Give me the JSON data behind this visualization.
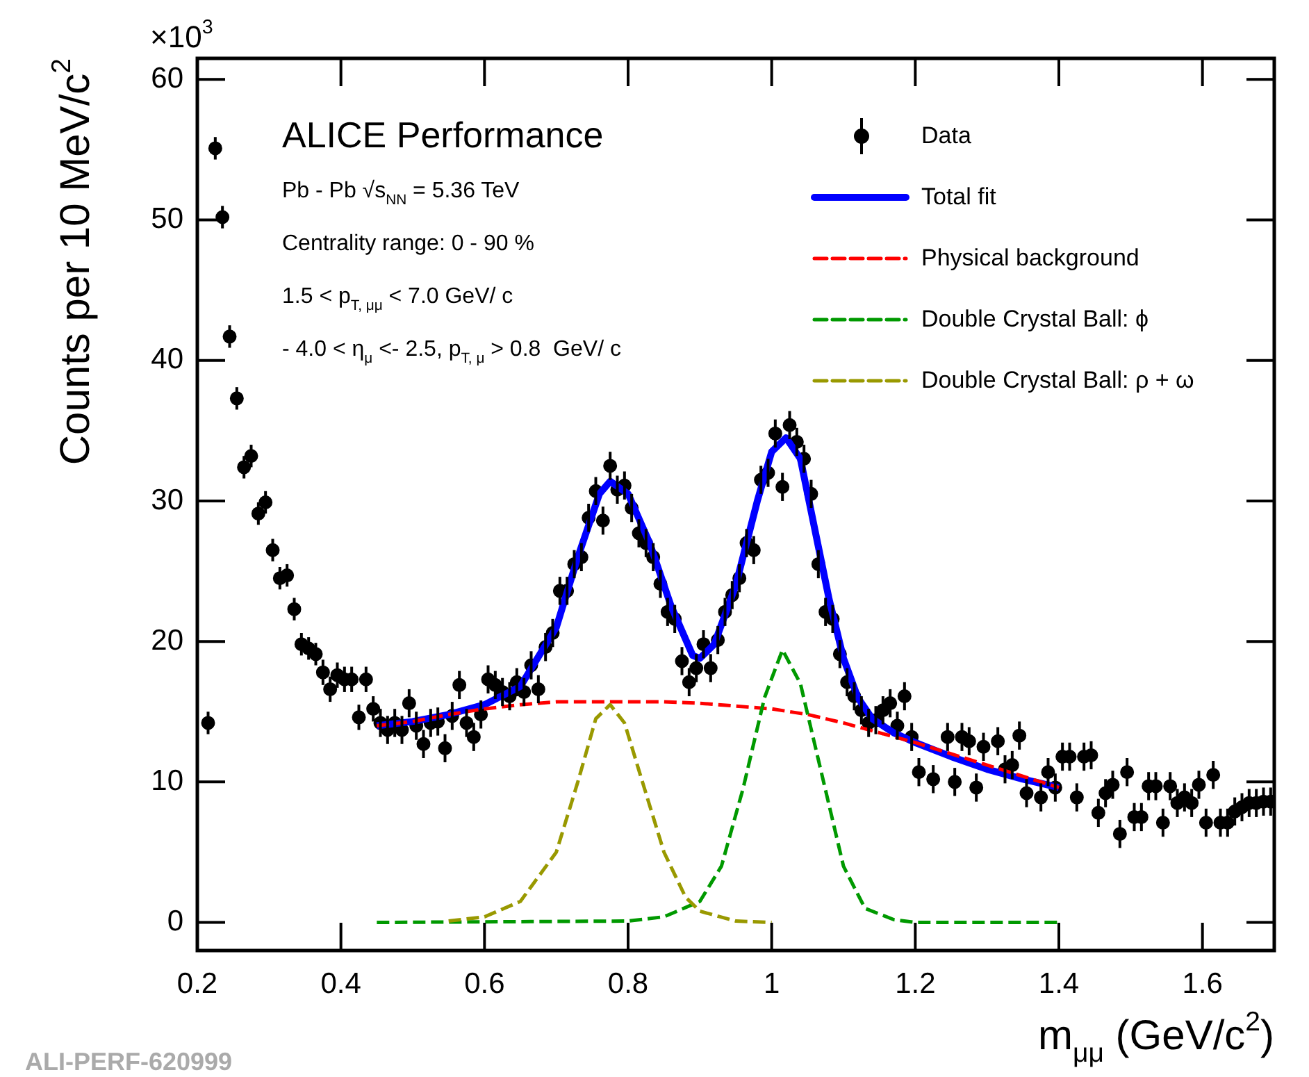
{
  "chart_data": {
    "type": "scatter",
    "title": "ALICE Performance",
    "xlabel": "m$_{μμ}$ (GeV/c$^{2}$)",
    "ylabel": "Counts per 10 MeV/c$^{2}$",
    "annotations": [
      "Pb - Pb √s$_{NN}$ = 5.36 TeV",
      "Centrality range: 0 - 90 %",
      "1.5 < p$_{T, μμ}$ < 7.0 GeV/ c",
      "- 4.0 < η$_{μ}$ <- 2.5, p$_{T, μ}$ > 0.8  GeV/ c",
      "×10$^{3}$",
      "ALI-PERF-620999"
    ],
    "xlim": [
      0.2,
      1.7
    ],
    "xticks": [
      0.2,
      0.4,
      0.6,
      0.8,
      1,
      1.2,
      1.4,
      1.6
    ],
    "ylim": [
      -2,
      61.5
    ],
    "yticks": [
      0,
      10,
      20,
      30,
      40,
      50,
      60
    ],
    "grid": false,
    "legend": "top right",
    "series": [
      {
        "name": "Data",
        "type": "scatter",
        "marker": "circle",
        "color": "#000000",
        "x": [
          0.215,
          0.225,
          0.235,
          0.245,
          0.255,
          0.265,
          0.275,
          0.285,
          0.295,
          0.305,
          0.315,
          0.325,
          0.335,
          0.345,
          0.355,
          0.365,
          0.375,
          0.385,
          0.395,
          0.405,
          0.415,
          0.425,
          0.435,
          0.445,
          0.455,
          0.465,
          0.475,
          0.485,
          0.495,
          0.505,
          0.515,
          0.525,
          0.535,
          0.545,
          0.555,
          0.565,
          0.575,
          0.585,
          0.595,
          0.605,
          0.615,
          0.625,
          0.635,
          0.645,
          0.655,
          0.665,
          0.675,
          0.685,
          0.695,
          0.705,
          0.715,
          0.725,
          0.735,
          0.745,
          0.755,
          0.765,
          0.775,
          0.785,
          0.795,
          0.805,
          0.815,
          0.825,
          0.835,
          0.845,
          0.855,
          0.865,
          0.875,
          0.885,
          0.895,
          0.905,
          0.915,
          0.925,
          0.935,
          0.945,
          0.955,
          0.965,
          0.975,
          0.985,
          0.995,
          1.005,
          1.015,
          1.025,
          1.035,
          1.045,
          1.055,
          1.065,
          1.075,
          1.085,
          1.095,
          1.105,
          1.115,
          1.125,
          1.135,
          1.145,
          1.155,
          1.165,
          1.175,
          1.185,
          1.195,
          1.205,
          1.225,
          1.245,
          1.255,
          1.265,
          1.275,
          1.285,
          1.295,
          1.315,
          1.325,
          1.335,
          1.345,
          1.355,
          1.375,
          1.385,
          1.395,
          1.405,
          1.415,
          1.425,
          1.435,
          1.445,
          1.455,
          1.465,
          1.475,
          1.485,
          1.495,
          1.505,
          1.515,
          1.525,
          1.535,
          1.545,
          1.555,
          1.565,
          1.575,
          1.585,
          1.595,
          1.605,
          1.615,
          1.625,
          1.635,
          1.645,
          1.655,
          1.665,
          1.675,
          1.685,
          1.695
        ],
        "values": [
          14.2,
          55.1,
          50.2,
          41.7,
          37.3,
          32.4,
          33.2,
          29.1,
          29.9,
          26.5,
          24.5,
          24.7,
          22.3,
          19.8,
          19.5,
          19.1,
          17.8,
          16.6,
          17.6,
          17.3,
          17.3,
          14.6,
          17.3,
          15.2,
          14.2,
          13.7,
          14.2,
          13.7,
          15.6,
          14.0,
          12.7,
          14.2,
          14.3,
          12.4,
          14.7,
          16.9,
          14.2,
          13.2,
          14.8,
          17.3,
          16.9,
          16.4,
          16.1,
          17.1,
          16.4,
          18.3,
          16.6,
          19.6,
          20.6,
          23.6,
          23.6,
          25.5,
          26.0,
          28.8,
          30.7,
          28.6,
          32.5,
          30.8,
          31.1,
          29.5,
          27.7,
          27.0,
          26.0,
          24.1,
          22.1,
          21.6,
          18.6,
          17.1,
          18.1,
          19.8,
          18.1,
          20.1,
          22.1,
          23.3,
          24.5,
          27.0,
          26.5,
          31.5,
          32.0,
          34.8,
          31.0,
          35.4,
          34.2,
          33.0,
          30.5,
          25.5,
          22.1,
          21.6,
          19.1,
          17.1,
          16.1,
          15.1,
          14.2,
          14.4,
          15.1,
          15.6,
          14.0,
          16.1,
          13.2,
          10.7,
          10.2,
          13.2,
          10.0,
          13.2,
          12.9,
          9.6,
          12.5,
          12.9,
          10.9,
          11.2,
          13.3,
          9.2,
          8.9,
          10.7,
          9.6,
          11.8,
          11.8,
          8.9,
          11.8,
          11.9,
          7.8,
          9.2,
          9.8,
          6.3,
          10.7,
          7.5,
          7.5,
          9.7,
          9.7,
          7.1,
          9.7,
          8.5,
          8.9,
          8.5,
          9.8,
          7.1,
          10.5,
          7.1,
          7.1,
          7.9,
          8.2,
          8.5,
          8.5,
          8.6,
          8.6
        ],
        "errors": [
          0.8,
          0.8,
          0.8,
          0.8,
          0.8,
          0.8,
          0.8,
          0.8,
          0.8,
          0.8,
          0.8,
          0.8,
          0.8,
          0.8,
          0.8,
          0.8,
          0.9,
          0.9,
          0.9,
          0.9,
          0.9,
          0.9,
          0.9,
          0.9,
          1,
          1,
          1,
          1,
          1,
          1,
          1,
          1,
          1,
          1,
          1,
          1,
          1,
          1,
          1,
          1,
          1,
          1,
          1,
          1,
          1,
          1,
          1,
          1,
          1,
          1,
          1,
          1,
          1,
          1,
          1,
          1,
          1,
          1,
          1,
          1,
          1,
          1,
          1,
          1,
          1,
          1,
          1,
          1,
          1,
          1,
          1,
          1,
          1,
          1,
          1,
          1,
          1,
          1,
          1,
          1,
          1,
          1,
          1,
          1,
          1,
          1,
          1,
          1,
          1,
          1,
          1,
          1,
          1,
          1,
          1,
          1,
          1,
          1,
          1,
          1,
          1,
          1,
          1,
          1,
          1,
          1,
          1,
          1,
          1,
          1,
          1,
          1,
          1,
          1,
          1,
          1,
          1,
          1,
          1,
          1,
          1,
          1,
          1,
          1,
          1,
          1,
          1,
          1,
          1,
          1,
          1,
          1,
          1,
          1,
          1,
          1,
          1,
          1,
          1,
          1,
          1,
          1,
          1,
          1,
          1
        ]
      },
      {
        "name": "Total fit",
        "type": "line",
        "marker": "none",
        "line_style": "solid",
        "color": "#0000ff",
        "x": [
          0.45,
          0.5,
          0.55,
          0.6,
          0.65,
          0.7,
          0.73,
          0.76,
          0.775,
          0.8,
          0.83,
          0.86,
          0.89,
          0.9,
          0.92,
          0.95,
          0.98,
          1.0,
          1.02,
          1.04,
          1.06,
          1.08,
          1.1,
          1.12,
          1.14,
          1.17,
          1.2,
          1.25,
          1.3,
          1.35,
          1.4
        ],
        "values": [
          14.0,
          14.3,
          14.8,
          15.5,
          16.8,
          21,
          26,
          30.5,
          31.4,
          30.5,
          27,
          22.5,
          19.0,
          18.8,
          19.8,
          24,
          30,
          33.5,
          34.5,
          33,
          28,
          23,
          18.8,
          16,
          14.5,
          13.5,
          12.8,
          11.8,
          10.9,
          10.2,
          9.6
        ]
      },
      {
        "name": "Physical background",
        "type": "line",
        "marker": "none",
        "line_style": "dashed",
        "color": "#ff0000",
        "x": [
          0.45,
          0.5,
          0.55,
          0.6,
          0.65,
          0.7,
          0.8,
          0.85,
          0.9,
          1.0,
          1.05,
          1.1,
          1.15,
          1.2,
          1.3,
          1.4
        ],
        "values": [
          14.0,
          14.3,
          14.8,
          15.2,
          15.5,
          15.7,
          15.7,
          15.7,
          15.6,
          15.2,
          14.8,
          14.2,
          13.5,
          12.8,
          11.2,
          9.6
        ]
      },
      {
        "name": "Double Crystal Ball: ϕ",
        "type": "line",
        "marker": "none",
        "line_style": "dashed",
        "color": "#009900",
        "x": [
          0.45,
          0.8,
          0.85,
          0.9,
          0.93,
          0.96,
          0.99,
          1.015,
          1.04,
          1.07,
          1.1,
          1.13,
          1.17,
          1.2,
          1.4
        ],
        "values": [
          0,
          0.1,
          0.4,
          1.5,
          4,
          9.5,
          16,
          19.4,
          17,
          10.5,
          4,
          1,
          0.2,
          0,
          0
        ]
      },
      {
        "name": "Double Crystal Ball: ρ + ω",
        "type": "line",
        "marker": "none",
        "line_style": "dashed",
        "color": "#999900",
        "x": [
          0.55,
          0.6,
          0.65,
          0.7,
          0.73,
          0.755,
          0.775,
          0.795,
          0.82,
          0.85,
          0.88,
          0.9,
          0.95,
          1.0
        ],
        "values": [
          0.1,
          0.4,
          1.5,
          5,
          10,
          14.5,
          15.5,
          14.2,
          10,
          5,
          1.8,
          0.8,
          0.1,
          0
        ]
      }
    ]
  }
}
